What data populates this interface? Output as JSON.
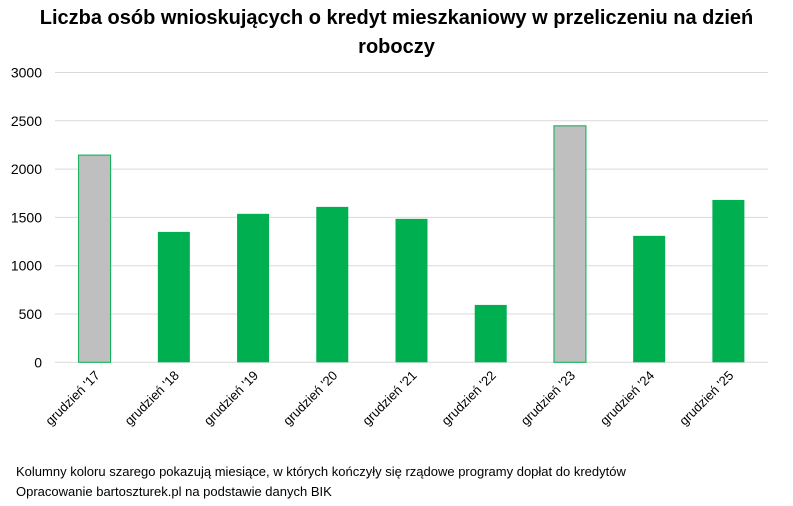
{
  "chart_data": {
    "type": "bar",
    "title": "Liczba osób wnioskujących o kredyt mieszkaniowy w przeliczeniu na dzień roboczy",
    "categories": [
      "grudzień '17",
      "grudzień '18",
      "grudzień '19",
      "grudzień '20",
      "grudzień '21",
      "grudzień '22",
      "grudzień '23",
      "grudzień '24",
      "grudzień '25"
    ],
    "values": [
      2145,
      1350,
      1537,
      1609,
      1485,
      594,
      2448,
      1309,
      1681
    ],
    "highlighted": [
      true,
      false,
      false,
      false,
      false,
      false,
      true,
      false,
      false
    ],
    "ylim": [
      0,
      3000
    ],
    "yticks": [
      0,
      500,
      1000,
      1500,
      2000,
      2500,
      3000
    ],
    "grid": true,
    "colors": {
      "normal": "#00b050",
      "highlighted": "#bfbfbf",
      "outline": "#00b050",
      "grid": "#d9d9d9"
    }
  },
  "notes": [
    "Kolumny koloru szarego pokazują miesiące, w których kończyły się rządowe programy dopłat do kredytów",
    "Opracowanie bartoszturek.pl na podstawie danych BIK"
  ]
}
